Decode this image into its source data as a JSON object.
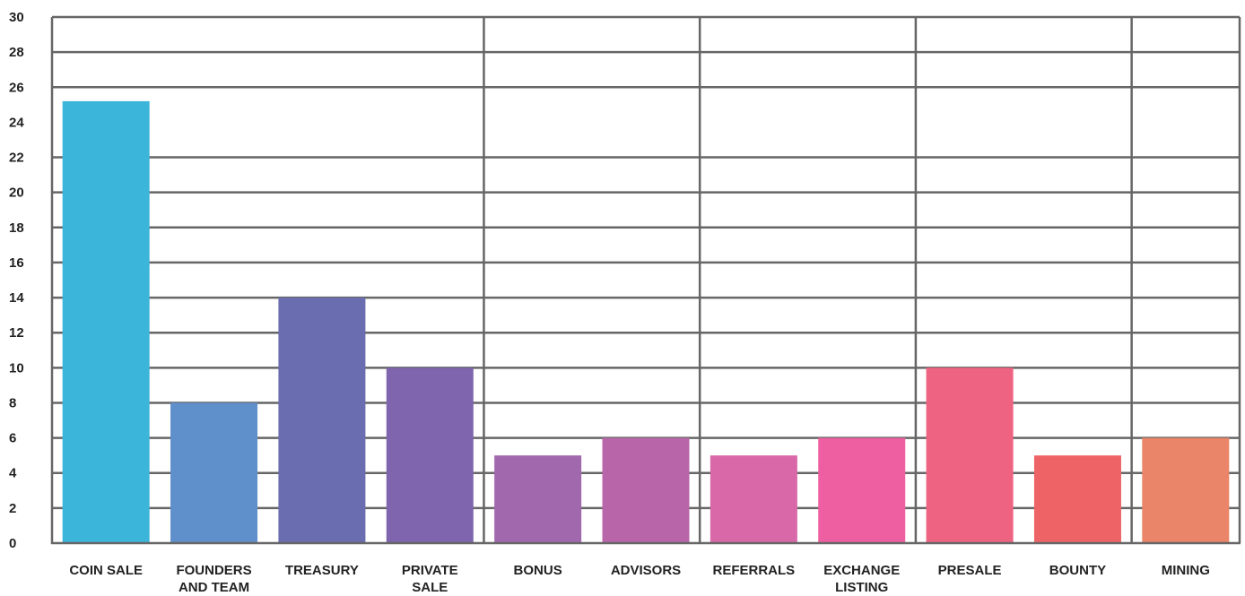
{
  "chart_data": {
    "type": "bar",
    "title": "",
    "xlabel": "",
    "ylabel": "",
    "ylim": [
      0,
      30
    ],
    "yticks": [
      0,
      2,
      4,
      6,
      8,
      10,
      12,
      14,
      16,
      18,
      20,
      22,
      24,
      26,
      28,
      30
    ],
    "grid": true,
    "categories": [
      [
        "COIN SALE"
      ],
      [
        "FOUNDERS",
        "AND TEAM"
      ],
      [
        "TREASURY"
      ],
      [
        "PRIVATE",
        "SALE"
      ],
      [
        "BONUS"
      ],
      [
        "ADVISORS"
      ],
      [
        "REFERRALS"
      ],
      [
        "EXCHANGE",
        "LISTING"
      ],
      [
        "PRESALE"
      ],
      [
        "BOUNTY"
      ],
      [
        "MINING"
      ]
    ],
    "values": [
      25.2,
      8,
      14,
      10,
      5,
      6,
      5,
      6,
      10,
      5,
      6
    ],
    "colors": [
      "#3cb5db",
      "#5f90cc",
      "#6a6db0",
      "#7e65ad",
      "#a168ae",
      "#b866a9",
      "#d868a8",
      "#ed5fa0",
      "#ef6382",
      "#ee6366",
      "#ea8569"
    ],
    "grid_color": "#666666"
  }
}
